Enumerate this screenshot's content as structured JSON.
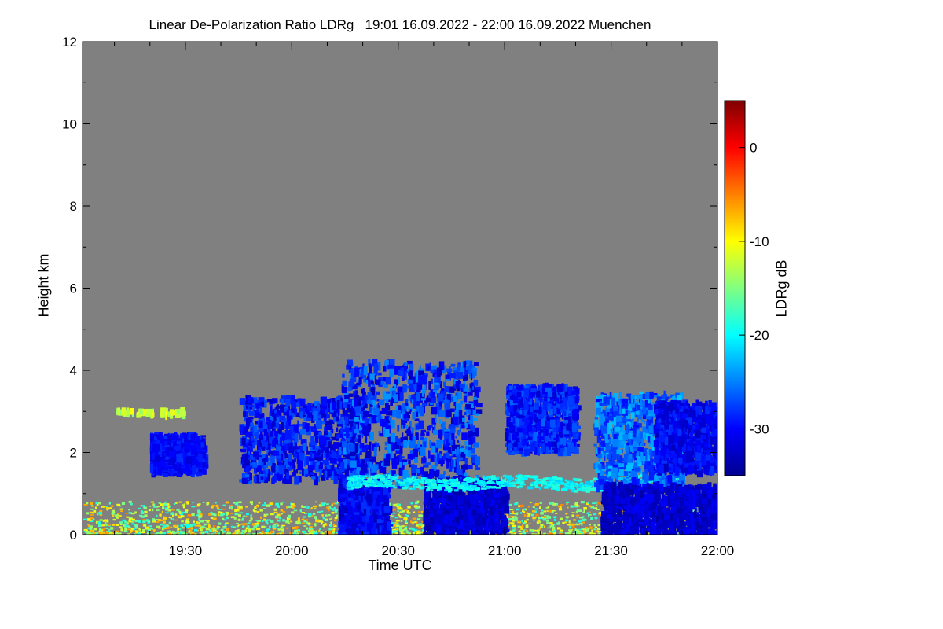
{
  "chart_data": {
    "type": "heatmap",
    "title": "Linear De-Polarization Ratio LDRg   19:01 16.09.2022 - 22:00 16.09.2022 Muenchen",
    "xlabel": "Time UTC",
    "ylabel": "Height km",
    "colorbar_label": "LDRg dB",
    "x_range": [
      "19:01",
      "22:00"
    ],
    "y_range": [
      0,
      12
    ],
    "x_ticks": [
      "19:30",
      "20:00",
      "20:30",
      "21:00",
      "21:30",
      "22:00"
    ],
    "y_ticks": [
      0,
      2,
      4,
      6,
      8,
      10,
      12
    ],
    "colorbar_range": [
      -35,
      5
    ],
    "colorbar_ticks": [
      0,
      -10,
      -20,
      -30
    ],
    "colormap": [
      "#00008f",
      "#0000ff",
      "#0080ff",
      "#00ffff",
      "#80ff80",
      "#ffff00",
      "#ff8000",
      "#ff0000",
      "#800000"
    ],
    "background_color": "#808080",
    "features": [
      {
        "name": "near-surface scattered returns",
        "time": [
          "19:01",
          "22:00"
        ],
        "height_km": [
          0,
          0.8
        ],
        "ldr_db": [
          -20,
          -5
        ]
      },
      {
        "name": "upper boundary speckles",
        "time": [
          "19:10",
          "19:30"
        ],
        "height_km": [
          2.9,
          3.0
        ],
        "ldr_db": [
          -15,
          -10
        ]
      },
      {
        "name": "small cloud patch",
        "time": [
          "19:20",
          "19:35"
        ],
        "height_km": [
          1.5,
          2.4
        ],
        "ldr_db": [
          -32,
          -28
        ]
      },
      {
        "name": "cloud cluster A",
        "time": [
          "19:45",
          "20:20"
        ],
        "height_km": [
          1.3,
          3.3
        ],
        "ldr_db": [
          -33,
          -26
        ]
      },
      {
        "name": "fall streaks / precipitation A",
        "time": [
          "20:13",
          "20:27"
        ],
        "height_km": [
          0,
          1.3
        ],
        "ldr_db": [
          -33,
          -28
        ]
      },
      {
        "name": "cloud cluster B",
        "time": [
          "20:14",
          "20:52"
        ],
        "height_km": [
          1.2,
          4.2
        ],
        "ldr_db": [
          -33,
          -24
        ]
      },
      {
        "name": "precipitation column B",
        "time": [
          "20:37",
          "21:00"
        ],
        "height_km": [
          0,
          1.3
        ],
        "ldr_db": [
          -34,
          -30
        ]
      },
      {
        "name": "melting layer bright band",
        "time": [
          "20:15",
          "21:50"
        ],
        "height_km": [
          1.1,
          1.4
        ],
        "ldr_db": [
          -22,
          -18
        ]
      },
      {
        "name": "cloud patch C",
        "time": [
          "21:00",
          "21:20"
        ],
        "height_km": [
          2.0,
          3.6
        ],
        "ldr_db": [
          -32,
          -26
        ]
      },
      {
        "name": "cloud cluster D",
        "time": [
          "21:25",
          "21:50"
        ],
        "height_km": [
          1.1,
          3.4
        ],
        "ldr_db": [
          -30,
          -22
        ]
      },
      {
        "name": "precipitation column D",
        "time": [
          "21:27",
          "22:00"
        ],
        "height_km": [
          0,
          1.2
        ],
        "ldr_db": [
          -34,
          -30
        ]
      },
      {
        "name": "cloud patch E",
        "time": [
          "21:42",
          "22:00"
        ],
        "height_km": [
          1.5,
          3.2
        ],
        "ldr_db": [
          -33,
          -28
        ]
      }
    ]
  }
}
